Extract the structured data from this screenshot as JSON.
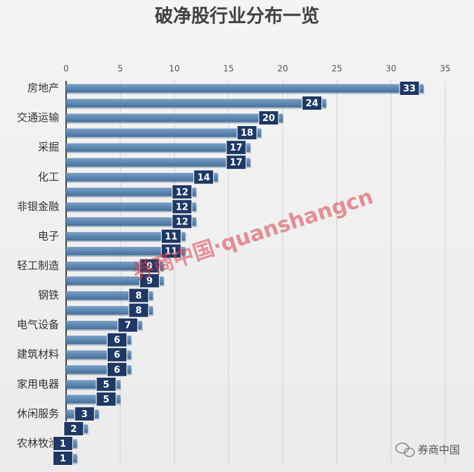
{
  "chart_data": {
    "type": "barh",
    "title": "破净股行业分布一览",
    "categories": [
      "房地产",
      null,
      "交通运输",
      null,
      "采掘",
      null,
      "化工",
      null,
      "非银金融",
      null,
      "电子",
      null,
      "轻工制造",
      null,
      "钢铁",
      null,
      "电气设备",
      null,
      "建筑材料",
      null,
      "家用电器",
      null,
      "休闲服务",
      null,
      "农林牧渔",
      null
    ],
    "values": [
      33,
      24,
      20,
      18,
      17,
      17,
      14,
      12,
      12,
      12,
      11,
      11,
      9,
      9,
      8,
      8,
      7,
      6,
      6,
      6,
      5,
      5,
      3,
      2,
      1,
      1
    ],
    "color": "#5a85b0",
    "label_color": "#1f3864",
    "xlim": [
      0,
      35
    ],
    "xticks": [
      0,
      5,
      10,
      15,
      20,
      25,
      30,
      35
    ],
    "grid": true,
    "watermark": "券商中国·quanshangcn",
    "source_logo": "券商中国"
  }
}
